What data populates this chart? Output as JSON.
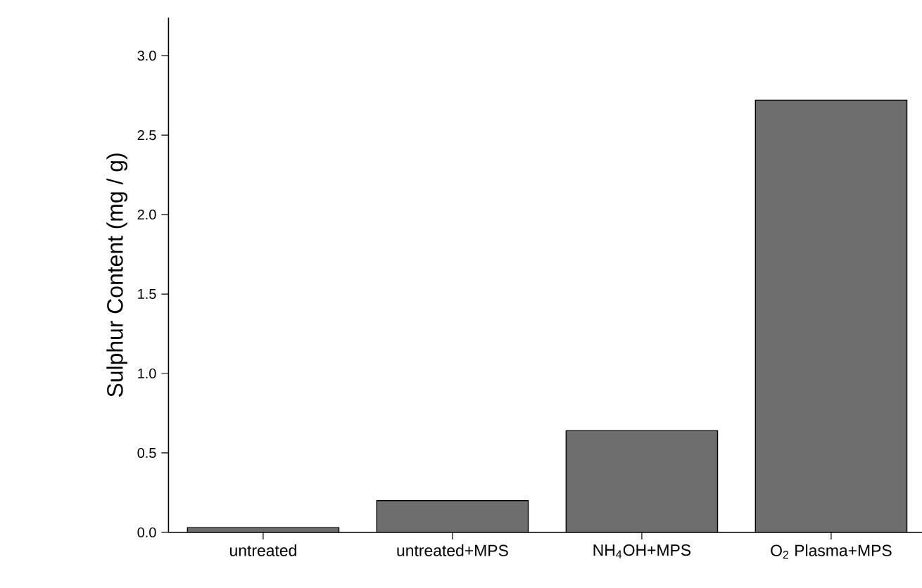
{
  "chart_data": {
    "type": "bar",
    "ylabel": "Sulphur Content (mg / g)",
    "categories": [
      "untreated",
      "untreated+MPS",
      "NH$_{4}$OH+MPS",
      "O$_{2}$ Plasma+MPS"
    ],
    "values": [
      0.03,
      0.2,
      0.64,
      2.72
    ],
    "color": "#6e6e6e",
    "ylim": [
      0,
      3.24
    ],
    "yticks": [
      {
        "value": 0,
        "label": "0.0"
      },
      {
        "value": 0.5,
        "label": "0.5"
      },
      {
        "value": 1,
        "label": "1.0"
      },
      {
        "value": 1.5,
        "label": "1.5"
      },
      {
        "value": 2,
        "label": "2.0"
      },
      {
        "value": 2.5,
        "label": "2.5"
      },
      {
        "value": 3,
        "label": "3.0"
      }
    ]
  }
}
